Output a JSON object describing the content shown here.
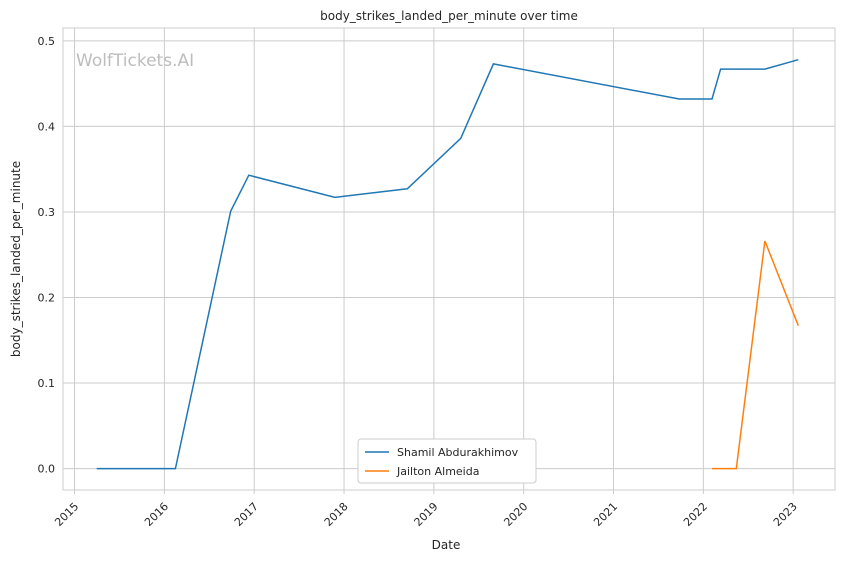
{
  "chart_data": {
    "type": "line",
    "title": "body_strikes_landed_per_minute over time",
    "xlabel": "Date",
    "ylabel": "body_strikes_landed_per_minute",
    "watermark": "WolfTickets.AI",
    "xlim": [
      "2014-11-15",
      "2023-06-20"
    ],
    "ylim": [
      -0.025,
      0.515
    ],
    "x_ticks": [
      "2015",
      "2016",
      "2017",
      "2018",
      "2019",
      "2020",
      "2021",
      "2022",
      "2023"
    ],
    "y_ticks": [
      "0.0",
      "0.1",
      "0.2",
      "0.3",
      "0.4",
      "0.5"
    ],
    "grid": true,
    "legend_position": "bottom-center",
    "series": [
      {
        "name": "Shamil Abdurakhimov",
        "color": "#1f77b4",
        "x": [
          "2015-04-01",
          "2016-02-15",
          "2016-09-27",
          "2016-12-10",
          "2017-11-25",
          "2018-09-15",
          "2019-04-20",
          "2019-08-31",
          "2021-09-25",
          "2022-02-05",
          "2022-03-12",
          "2022-09-08",
          "2023-01-22"
        ],
        "y": [
          0.0,
          0.0,
          0.301,
          0.343,
          0.317,
          0.327,
          0.386,
          0.473,
          0.432,
          0.432,
          0.467,
          0.467,
          0.478
        ]
      },
      {
        "name": "Jailton Almeida",
        "color": "#ff7f0e",
        "x": [
          "2022-02-05",
          "2022-05-15",
          "2022-09-08",
          "2023-01-22"
        ],
        "y": [
          0.0,
          0.0,
          0.266,
          0.167
        ]
      }
    ]
  }
}
